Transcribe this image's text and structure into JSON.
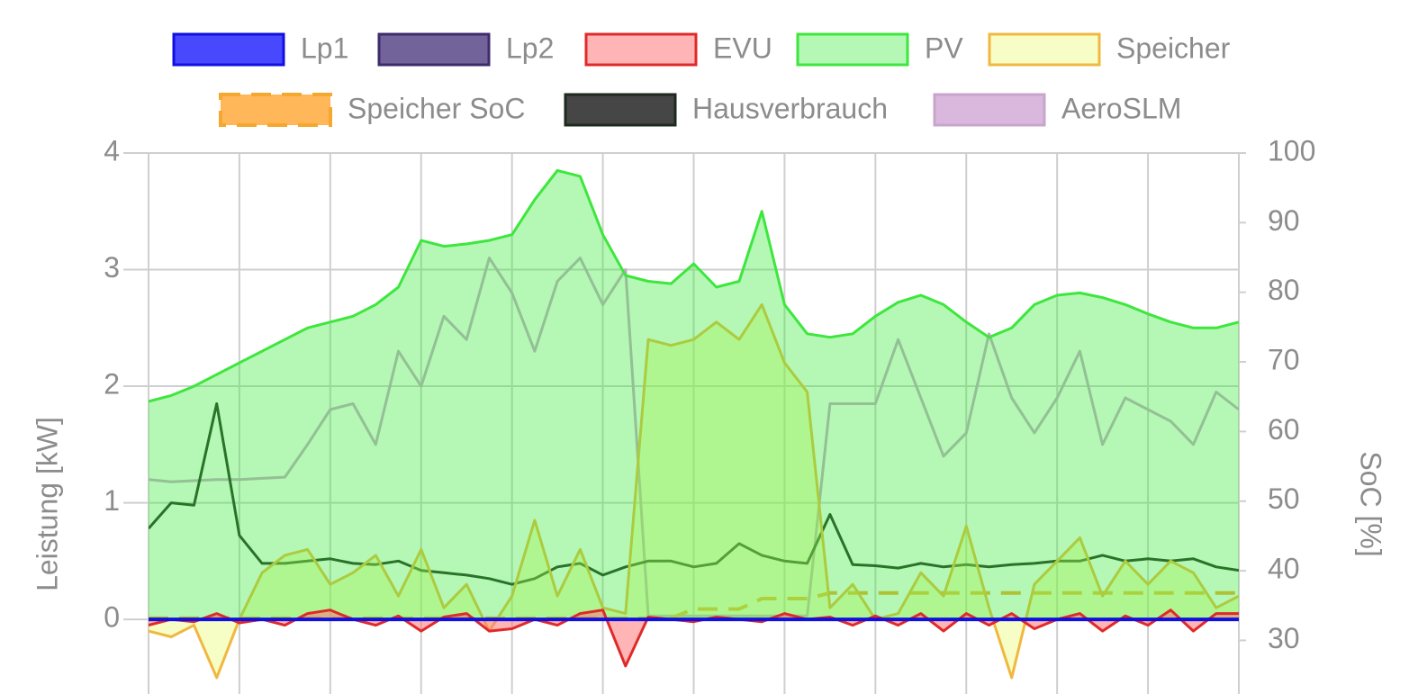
{
  "chart_data": {
    "type": "line",
    "ylabel": "Leistung [kW]",
    "y2label": "SoC [%]",
    "ylim": [
      -0.64,
      4
    ],
    "yticks": [
      0,
      1,
      2,
      3,
      4
    ],
    "y2lim": [
      22.3,
      100
    ],
    "y2ticks": [
      30,
      40,
      50,
      60,
      70,
      80,
      90,
      100
    ],
    "grid": true,
    "legend": "top",
    "series": [
      {
        "name": "Lp1",
        "color": "#1010e0",
        "background": "rgba(40,40,255,0.85)",
        "fill": false,
        "values": [
          0,
          0,
          0,
          0,
          0,
          0,
          0,
          0,
          0,
          0,
          0,
          0,
          0,
          0,
          0,
          0,
          0,
          0,
          0,
          0,
          0,
          0,
          0,
          0,
          0,
          0,
          0,
          0,
          0,
          0,
          0,
          0,
          0,
          0,
          0,
          0,
          0,
          0,
          0,
          0,
          0,
          0,
          0,
          0,
          0,
          0,
          0,
          0,
          0
        ]
      },
      {
        "name": "Lp2",
        "color": "#3d2c6b",
        "background": "rgba(80,60,130,0.8)",
        "fill": false,
        "values": [
          0,
          0,
          0,
          0,
          0,
          0,
          0,
          0,
          0,
          0,
          0,
          0,
          0,
          0,
          0,
          0,
          0,
          0,
          0,
          0,
          0,
          0,
          0,
          0,
          0,
          0,
          0,
          0,
          0,
          0,
          0,
          0,
          0,
          0,
          0,
          0,
          0,
          0,
          0,
          0,
          0,
          0,
          0,
          0,
          0,
          0,
          0,
          0,
          0
        ]
      },
      {
        "name": "EVU",
        "color": "#e02a2a",
        "background": "rgba(255,120,120,0.55)",
        "fill": true,
        "values": [
          -0.05,
          0,
          -0.02,
          0.05,
          -0.03,
          0,
          -0.05,
          0.05,
          0.08,
          0,
          -0.05,
          0.03,
          -0.1,
          0.02,
          0.05,
          -0.1,
          -0.08,
          0.0,
          -0.05,
          0.05,
          0.08,
          -0.4,
          0.02,
          0.0,
          -0.02,
          0.02,
          0.0,
          -0.02,
          0.05,
          0.0,
          0.02,
          -0.05,
          0.03,
          -0.05,
          0.05,
          -0.1,
          0.05,
          -0.05,
          0.05,
          -0.08,
          0.0,
          0.05,
          -0.1,
          0.03,
          -0.05,
          0.08,
          -0.1,
          0.05,
          0.05
        ]
      },
      {
        "name": "PV",
        "color": "#3ee63e",
        "background": "rgba(60,235,60,0.38)",
        "fill": true,
        "values": [
          1.87,
          1.92,
          2.0,
          2.1,
          2.2,
          2.3,
          2.4,
          2.5,
          2.55,
          2.6,
          2.7,
          2.85,
          3.25,
          3.2,
          3.22,
          3.25,
          3.3,
          3.6,
          3.85,
          3.8,
          3.3,
          2.95,
          2.9,
          2.88,
          3.05,
          2.85,
          2.9,
          3.5,
          2.7,
          2.45,
          2.42,
          2.45,
          2.6,
          2.72,
          2.78,
          2.7,
          2.55,
          2.42,
          2.5,
          2.7,
          2.78,
          2.8,
          2.76,
          2.7,
          2.62,
          2.55,
          2.5,
          2.5,
          2.55
        ]
      },
      {
        "name": "Speicher",
        "color": "#f0b840",
        "background": "rgba(230,250,90,0.35)",
        "fill": true,
        "values": [
          -0.1,
          -0.15,
          -0.05,
          -0.5,
          0,
          0.4,
          0.55,
          0.6,
          0.3,
          0.4,
          0.55,
          0.2,
          0.6,
          0.1,
          0.3,
          -0.1,
          0.2,
          0.85,
          0.2,
          0.6,
          0.1,
          0.05,
          2.4,
          2.35,
          2.4,
          2.55,
          2.4,
          2.7,
          2.2,
          1.95,
          0.1,
          0.3,
          0.0,
          0.05,
          0.4,
          0.2,
          0.8,
          0.1,
          -0.5,
          0.3,
          0.5,
          0.7,
          0.2,
          0.5,
          0.3,
          0.5,
          0.4,
          0.1,
          0.2
        ]
      },
      {
        "name": "Speicher SoC",
        "color": "#f5a830",
        "background": "rgba(255,170,60,0.85)",
        "fill": false,
        "dashed": true,
        "axis": "y2",
        "values": [
          33.2,
          33.2,
          33.2,
          33.2,
          33.2,
          33.2,
          33.2,
          33.2,
          33.2,
          33.2,
          33.2,
          33.2,
          33.2,
          33.2,
          33.2,
          33.2,
          33.2,
          33.2,
          33.2,
          33.2,
          33.2,
          33.2,
          33.2,
          33.2,
          34.5,
          34.5,
          34.5,
          36,
          36,
          36,
          36.8,
          36.8,
          36.8,
          36.8,
          36.8,
          36.8,
          36.8,
          36.8,
          36.8,
          36.8,
          36.8,
          36.8,
          36.8,
          36.8,
          36.8,
          36.8,
          36.8,
          36.8,
          36.8
        ]
      },
      {
        "name": "Hausverbrauch",
        "color": "#1e2a1e",
        "background": "rgba(60,60,60,0.95)",
        "fill": false,
        "values": [
          0.78,
          1.0,
          0.98,
          1.85,
          0.72,
          0.48,
          0.48,
          0.5,
          0.52,
          0.48,
          0.47,
          0.5,
          0.42,
          0.4,
          0.38,
          0.35,
          0.3,
          0.35,
          0.45,
          0.48,
          0.38,
          0.45,
          0.5,
          0.5,
          0.45,
          0.48,
          0.65,
          0.55,
          0.5,
          0.48,
          0.9,
          0.47,
          0.46,
          0.44,
          0.48,
          0.45,
          0.47,
          0.45,
          0.47,
          0.48,
          0.5,
          0.5,
          0.55,
          0.5,
          0.52,
          0.5,
          0.52,
          0.45,
          0.42
        ]
      },
      {
        "name": "AeroSLM",
        "color": "#c8a6cc",
        "background": "rgba(205,160,210,0.75)",
        "fill": false,
        "values": [
          1.2,
          1.18,
          1.19,
          1.2,
          1.2,
          1.21,
          1.22,
          1.5,
          1.8,
          1.85,
          1.5,
          2.3,
          2.0,
          2.6,
          2.4,
          3.1,
          2.8,
          2.3,
          2.9,
          3.1,
          2.7,
          3.0,
          0.03,
          0.03,
          0.03,
          0.03,
          0.03,
          0.03,
          0.03,
          0.03,
          1.85,
          1.85,
          1.85,
          2.4,
          1.9,
          1.4,
          1.6,
          2.45,
          1.9,
          1.6,
          1.9,
          2.3,
          1.5,
          1.9,
          1.8,
          1.7,
          1.5,
          1.95,
          1.8
        ]
      }
    ]
  }
}
